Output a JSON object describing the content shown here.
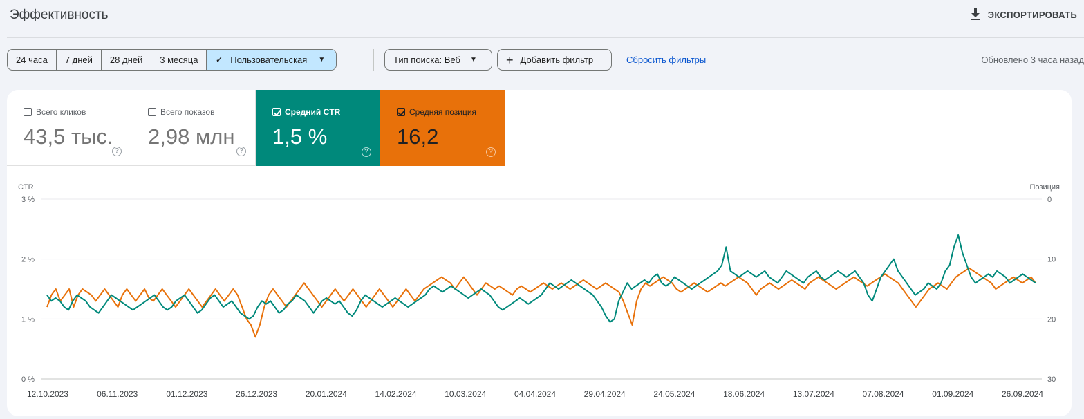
{
  "header": {
    "title": "Эффективность",
    "export_label": "ЭКСПОРТИРОВАТЬ",
    "export_icon": "download-icon"
  },
  "toolbar": {
    "ranges": [
      {
        "label": "24 часа"
      },
      {
        "label": "7 дней"
      },
      {
        "label": "28 дней"
      },
      {
        "label": "3 месяца"
      },
      {
        "label": "Пользовательская",
        "active": true
      }
    ],
    "search_type_label": "Тип поиска: Веб",
    "add_filter_label": "Добавить фильтр",
    "reset_label": "Сбросить фильтры",
    "updated_label": "Обновлено 3 часа назад"
  },
  "metrics": {
    "clicks": {
      "label": "Всего кликов",
      "value": "43,5 тыс.",
      "checked": false
    },
    "impressions": {
      "label": "Всего показов",
      "value": "2,98 млн",
      "checked": false
    },
    "ctr": {
      "label": "Средний CTR",
      "value": "1,5 %",
      "checked": true,
      "color": "#00897b"
    },
    "position": {
      "label": "Средняя позиция",
      "value": "16,2",
      "checked": true,
      "color": "#e8710a"
    }
  },
  "chart_data": {
    "type": "line",
    "left_axis": {
      "title": "CTR",
      "ticks": [
        "3 %",
        "2 %",
        "1 %",
        "0 %"
      ],
      "range": [
        0,
        3
      ],
      "unit": "%"
    },
    "right_axis": {
      "title": "Позиция",
      "ticks": [
        "0",
        "10",
        "20",
        "30"
      ],
      "range": [
        0,
        30
      ],
      "inverted": true
    },
    "x_ticks": [
      "12.10.2023",
      "06.11.2023",
      "01.12.2023",
      "26.12.2023",
      "20.01.2024",
      "14.02.2024",
      "10.03.2024",
      "04.04.2024",
      "29.04.2024",
      "24.05.2024",
      "18.06.2024",
      "13.07.2024",
      "07.08.2024",
      "01.09.2024",
      "26.09.2024"
    ],
    "x_range": [
      "12.10.2023",
      "26.09.2024"
    ],
    "grid": true,
    "series": [
      {
        "name": "Средний CTR",
        "axis": "left",
        "color": "#00897b",
        "values": [
          1.4,
          1.3,
          1.35,
          1.3,
          1.2,
          1.15,
          1.3,
          1.4,
          1.35,
          1.3,
          1.2,
          1.15,
          1.1,
          1.2,
          1.3,
          1.4,
          1.35,
          1.3,
          1.25,
          1.2,
          1.15,
          1.2,
          1.25,
          1.3,
          1.35,
          1.4,
          1.3,
          1.2,
          1.15,
          1.2,
          1.3,
          1.35,
          1.4,
          1.3,
          1.2,
          1.1,
          1.15,
          1.25,
          1.35,
          1.4,
          1.3,
          1.2,
          1.25,
          1.3,
          1.2,
          1.1,
          1.05,
          1.0,
          1.05,
          1.2,
          1.3,
          1.25,
          1.3,
          1.2,
          1.1,
          1.15,
          1.25,
          1.3,
          1.4,
          1.35,
          1.3,
          1.2,
          1.1,
          1.2,
          1.3,
          1.35,
          1.3,
          1.25,
          1.3,
          1.2,
          1.1,
          1.05,
          1.15,
          1.3,
          1.4,
          1.35,
          1.3,
          1.25,
          1.2,
          1.25,
          1.3,
          1.35,
          1.3,
          1.25,
          1.2,
          1.25,
          1.3,
          1.35,
          1.4,
          1.5,
          1.55,
          1.5,
          1.45,
          1.5,
          1.55,
          1.5,
          1.45,
          1.4,
          1.35,
          1.4,
          1.45,
          1.5,
          1.45,
          1.4,
          1.3,
          1.2,
          1.15,
          1.2,
          1.25,
          1.3,
          1.35,
          1.3,
          1.25,
          1.3,
          1.35,
          1.4,
          1.5,
          1.6,
          1.55,
          1.5,
          1.55,
          1.6,
          1.65,
          1.6,
          1.55,
          1.5,
          1.45,
          1.4,
          1.3,
          1.2,
          1.05,
          0.95,
          1.0,
          1.3,
          1.45,
          1.6,
          1.5,
          1.55,
          1.6,
          1.65,
          1.6,
          1.7,
          1.75,
          1.6,
          1.55,
          1.6,
          1.7,
          1.65,
          1.6,
          1.55,
          1.5,
          1.55,
          1.6,
          1.65,
          1.7,
          1.75,
          1.8,
          1.9,
          2.2,
          1.8,
          1.75,
          1.7,
          1.75,
          1.8,
          1.75,
          1.7,
          1.75,
          1.8,
          1.7,
          1.65,
          1.6,
          1.7,
          1.8,
          1.75,
          1.7,
          1.65,
          1.6,
          1.7,
          1.75,
          1.8,
          1.7,
          1.65,
          1.7,
          1.75,
          1.8,
          1.75,
          1.7,
          1.75,
          1.8,
          1.7,
          1.6,
          1.4,
          1.3,
          1.5,
          1.7,
          1.8,
          1.9,
          2.0,
          1.8,
          1.7,
          1.6,
          1.5,
          1.4,
          1.45,
          1.5,
          1.6,
          1.55,
          1.5,
          1.6,
          1.8,
          1.9,
          2.2,
          2.4,
          2.1,
          1.9,
          1.7,
          1.6,
          1.65,
          1.7,
          1.75,
          1.7,
          1.8,
          1.75,
          1.7,
          1.6,
          1.65,
          1.7,
          1.75,
          1.7,
          1.65,
          1.6
        ]
      },
      {
        "name": "Средняя позиция",
        "axis": "right",
        "color": "#e8710a",
        "values": [
          18,
          16,
          15,
          17,
          16,
          15,
          18,
          16,
          15,
          15.5,
          16,
          17,
          16,
          15,
          16,
          17,
          18,
          16,
          15,
          16,
          17,
          16,
          15,
          16.5,
          17,
          16,
          15,
          16,
          17,
          18,
          17,
          16,
          15,
          16,
          17,
          18,
          17,
          16,
          15,
          16,
          17,
          16,
          15,
          16,
          18,
          20,
          21,
          23,
          21,
          18,
          16,
          15,
          16,
          17,
          18,
          17,
          16,
          15,
          14,
          15,
          16,
          17,
          18,
          17,
          16,
          15,
          16,
          17,
          16,
          15,
          16,
          17,
          18,
          17,
          16,
          15,
          16,
          17,
          18,
          17,
          16,
          15,
          16,
          17,
          16,
          15,
          14.5,
          14,
          13.5,
          13,
          13.5,
          14,
          15,
          14,
          13,
          14,
          15,
          16,
          15,
          14,
          14.5,
          15,
          14.5,
          15,
          15.5,
          16,
          15,
          14.5,
          15,
          15.5,
          15,
          14.5,
          14,
          14.5,
          15,
          14.5,
          14,
          14.5,
          15,
          14.5,
          14,
          13.5,
          14,
          14.5,
          15,
          14.5,
          14,
          14.5,
          15,
          15.5,
          17,
          19,
          21,
          17,
          15,
          14,
          14.5,
          14,
          13.5,
          13,
          13.5,
          14,
          15,
          15.5,
          15,
          14.5,
          14,
          14.5,
          15,
          15.5,
          15,
          14.5,
          14,
          14.5,
          14,
          13.5,
          13,
          13.5,
          14,
          15,
          16,
          15,
          14.5,
          14,
          14.5,
          15,
          14.5,
          14,
          13.5,
          14,
          14.5,
          15,
          14,
          13.5,
          13,
          13.5,
          14,
          14.5,
          15,
          14.5,
          14,
          13.5,
          13,
          13.5,
          14,
          14.5,
          14,
          13.5,
          13,
          12.5,
          13,
          13.5,
          14,
          15,
          16,
          17,
          18,
          17,
          16,
          15,
          14.5,
          14,
          14.5,
          15,
          14,
          13,
          12.5,
          12,
          11.5,
          12,
          12.5,
          13,
          13.5,
          14,
          15,
          14.5,
          14,
          13.5,
          13,
          13.5,
          14,
          13.5,
          13,
          14
        ]
      }
    ]
  }
}
